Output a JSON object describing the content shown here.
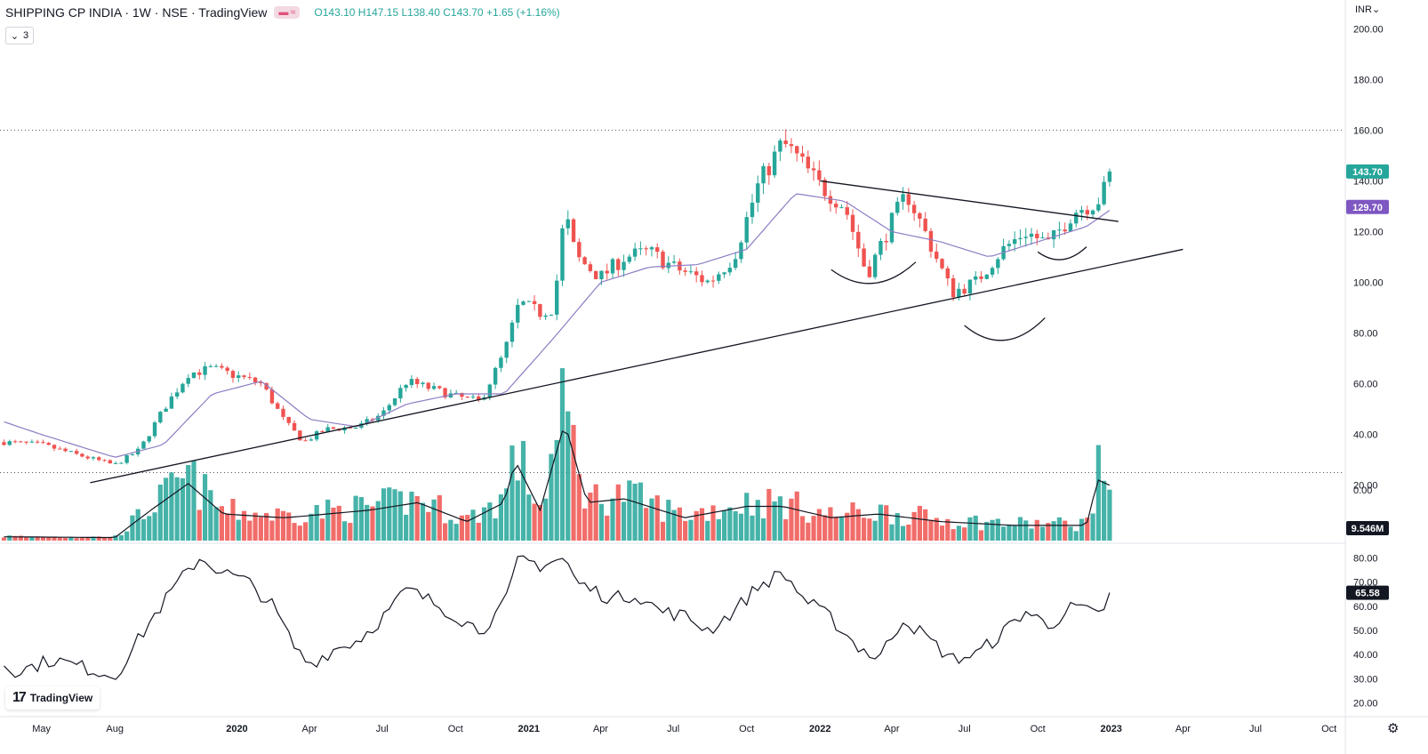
{
  "header": {
    "title": "SHIPPING CP INDIA · 1W · NSE · TradingView",
    "icon_a": "eye-icon",
    "icon_b": "wave-icon",
    "open": "O143.10",
    "high": "H147.15",
    "low": "L138.40",
    "close": "C143.70",
    "change": "+1.65 (+1.16%)",
    "collapse_count": "3"
  },
  "currency": "INR",
  "logo_text": "TradingView",
  "colors": {
    "up": "#26a69a",
    "down": "#ef5350",
    "ma": "#8e7cc3",
    "axis_text": "#131722",
    "price_badge": "#26a69a",
    "ma_badge": "#7e57c2",
    "vol_badge": "#131722"
  },
  "chart_data": [
    {
      "type": "candlestick",
      "panel": "price",
      "interval": "1W",
      "ylim": [
        15,
        205
      ],
      "y_ticks": [
        "200.00",
        "180.00",
        "160.00",
        "140.00",
        "120.00",
        "100.00",
        "80.00",
        "60.00",
        "40.00",
        "20.00",
        "0.00"
      ],
      "x_ticks": [
        "May",
        "Aug",
        "2020",
        "Apr",
        "Jul",
        "Oct",
        "2021",
        "Apr",
        "Jul",
        "Oct",
        "2022",
        "Apr",
        "Jul",
        "Oct",
        "2023",
        "Apr",
        "Jul",
        "Oct"
      ],
      "x_tick_dates": [
        "2019-05-01",
        "2019-08-01",
        "2020-01-01",
        "2020-04-01",
        "2020-07-01",
        "2020-10-01",
        "2021-01-01",
        "2021-04-01",
        "2021-07-01",
        "2021-10-01",
        "2022-01-01",
        "2022-04-01",
        "2022-07-01",
        "2022-10-01",
        "2023-01-01",
        "2023-04-01",
        "2023-07-01",
        "2023-10-01"
      ],
      "price_path": [
        [
          "2019-03-15",
          37
        ],
        [
          "2019-05-01",
          36
        ],
        [
          "2019-06-15",
          32
        ],
        [
          "2019-08-01",
          28
        ],
        [
          "2019-09-01",
          34
        ],
        [
          "2019-10-01",
          50
        ],
        [
          "2019-11-01",
          64
        ],
        [
          "2019-12-01",
          66
        ],
        [
          "2020-01-01",
          63
        ],
        [
          "2020-02-01",
          60
        ],
        [
          "2020-03-01",
          45
        ],
        [
          "2020-03-25",
          37
        ],
        [
          "2020-04-20",
          42
        ],
        [
          "2020-06-01",
          43
        ],
        [
          "2020-07-01",
          48
        ],
        [
          "2020-08-01",
          61
        ],
        [
          "2020-09-01",
          58
        ],
        [
          "2020-10-01",
          55
        ],
        [
          "2020-11-01",
          53
        ],
        [
          "2020-12-01",
          72
        ],
        [
          "2020-12-20",
          92
        ],
        [
          "2021-01-15",
          88
        ],
        [
          "2021-02-01",
          90
        ],
        [
          "2021-02-15",
          128
        ],
        [
          "2021-03-01",
          110
        ],
        [
          "2021-04-01",
          102
        ],
        [
          "2021-05-01",
          110
        ],
        [
          "2021-06-01",
          112
        ],
        [
          "2021-07-01",
          106
        ],
        [
          "2021-08-15",
          100
        ],
        [
          "2021-09-15",
          110
        ],
        [
          "2021-10-15",
          138
        ],
        [
          "2021-11-15",
          155
        ],
        [
          "2021-12-01",
          150
        ],
        [
          "2022-01-01",
          138
        ],
        [
          "2022-02-01",
          130
        ],
        [
          "2022-03-01",
          103
        ],
        [
          "2022-04-01",
          124
        ],
        [
          "2022-04-20",
          135
        ],
        [
          "2022-05-15",
          118
        ],
        [
          "2022-06-15",
          96
        ],
        [
          "2022-07-15",
          100
        ],
        [
          "2022-08-15",
          112
        ],
        [
          "2022-09-15",
          120
        ],
        [
          "2022-10-15",
          115
        ],
        [
          "2022-11-15",
          128
        ],
        [
          "2022-12-15",
          132
        ],
        [
          "2023-01-05",
          143.7
        ]
      ],
      "ma_path": [
        [
          "2019-03-15",
          45
        ],
        [
          "2019-05-01",
          40
        ],
        [
          "2019-08-01",
          31
        ],
        [
          "2019-10-01",
          36
        ],
        [
          "2019-12-01",
          56
        ],
        [
          "2020-02-01",
          61
        ],
        [
          "2020-04-01",
          46
        ],
        [
          "2020-06-01",
          43
        ],
        [
          "2020-08-01",
          52
        ],
        [
          "2020-10-01",
          56
        ],
        [
          "2020-12-01",
          56
        ],
        [
          "2021-02-01",
          78
        ],
        [
          "2021-04-01",
          100
        ],
        [
          "2021-06-01",
          106
        ],
        [
          "2021-08-01",
          107
        ],
        [
          "2021-10-01",
          113
        ],
        [
          "2021-12-01",
          135
        ],
        [
          "2022-02-01",
          132
        ],
        [
          "2022-04-01",
          120
        ],
        [
          "2022-06-01",
          116
        ],
        [
          "2022-08-01",
          110
        ],
        [
          "2022-10-01",
          116
        ],
        [
          "2022-12-01",
          122
        ],
        [
          "2023-01-05",
          129.7
        ]
      ],
      "trendlines": [
        {
          "from": [
            "2019-07-01",
            21
          ],
          "to": [
            "2023-04-01",
            113
          ]
        },
        {
          "from": [
            "2022-01-01",
            140
          ],
          "to": [
            "2023-01-10",
            124
          ]
        }
      ],
      "horizontal_levels": [
        160,
        25
      ],
      "arcs": [
        {
          "from": [
            "2022-01-15",
            105
          ],
          "to": [
            "2022-05-01",
            108
          ],
          "depth": 14
        },
        {
          "from": [
            "2022-07-01",
            83
          ],
          "to": [
            "2022-10-10",
            86
          ],
          "depth": 15
        },
        {
          "from": [
            "2022-10-01",
            112
          ],
          "to": [
            "2022-12-01",
            114
          ],
          "depth": 8
        }
      ],
      "last_price": 143.7,
      "last_price_label": "143.70",
      "ma_value": 129.7,
      "ma_label": "129.70"
    },
    {
      "type": "bar",
      "panel": "volume",
      "series_profile": [
        [
          "2019-03-15",
          0.5
        ],
        [
          "2019-08-01",
          0.4
        ],
        [
          "2019-09-15",
          4.0
        ],
        [
          "2019-11-01",
          7.5
        ],
        [
          "2019-12-15",
          3.5
        ],
        [
          "2020-03-01",
          3.0
        ],
        [
          "2020-06-15",
          4.0
        ],
        [
          "2020-08-15",
          5.0
        ],
        [
          "2020-10-15",
          2.5
        ],
        [
          "2020-12-01",
          5.0
        ],
        [
          "2020-12-15",
          10.5
        ],
        [
          "2021-01-15",
          4.0
        ],
        [
          "2021-02-15",
          15.5
        ],
        [
          "2021-03-15",
          5.0
        ],
        [
          "2021-05-01",
          5.5
        ],
        [
          "2021-07-15",
          3.0
        ],
        [
          "2021-10-01",
          4.5
        ],
        [
          "2021-11-15",
          4.5
        ],
        [
          "2022-01-15",
          3.0
        ],
        [
          "2022-03-15",
          3.5
        ],
        [
          "2022-06-01",
          2.5
        ],
        [
          "2022-09-01",
          2.0
        ],
        [
          "2022-12-01",
          2.0
        ],
        [
          "2022-12-15",
          8.0
        ],
        [
          "2023-01-05",
          7.0
        ]
      ],
      "last_volume_label": "9.546M"
    },
    {
      "type": "line",
      "panel": "rsi",
      "ylim": [
        18,
        82
      ],
      "y_ticks": [
        "80.00",
        "70.00",
        "60.00",
        "50.00",
        "40.00",
        "30.00",
        "20.00"
      ],
      "values_path": [
        [
          "2019-03-15",
          36
        ],
        [
          "2019-04-01",
          33
        ],
        [
          "2019-05-15",
          38
        ],
        [
          "2019-07-01",
          34
        ],
        [
          "2019-08-01",
          31
        ],
        [
          "2019-09-15",
          54
        ],
        [
          "2019-10-15",
          68
        ],
        [
          "2019-11-15",
          80
        ],
        [
          "2019-12-15",
          74
        ],
        [
          "2020-01-15",
          70
        ],
        [
          "2020-02-15",
          60
        ],
        [
          "2020-03-15",
          42
        ],
        [
          "2020-04-01",
          36
        ],
        [
          "2020-05-01",
          42
        ],
        [
          "2020-06-01",
          46
        ],
        [
          "2020-07-01",
          55
        ],
        [
          "2020-08-01",
          67
        ],
        [
          "2020-09-01",
          62
        ],
        [
          "2020-10-01",
          56
        ],
        [
          "2020-11-01",
          50
        ],
        [
          "2020-12-01",
          60
        ],
        [
          "2020-12-20",
          80
        ],
        [
          "2021-01-15",
          77
        ],
        [
          "2021-02-15",
          80
        ],
        [
          "2021-03-01",
          70
        ],
        [
          "2021-04-15",
          63
        ],
        [
          "2021-05-15",
          65
        ],
        [
          "2021-06-15",
          58
        ],
        [
          "2021-07-15",
          56
        ],
        [
          "2021-08-15",
          50
        ],
        [
          "2021-09-15",
          58
        ],
        [
          "2021-10-15",
          68
        ],
        [
          "2021-11-15",
          74
        ],
        [
          "2021-12-15",
          62
        ],
        [
          "2022-01-15",
          55
        ],
        [
          "2022-02-15",
          44
        ],
        [
          "2022-03-15",
          38
        ],
        [
          "2022-04-15",
          55
        ],
        [
          "2022-05-15",
          47
        ],
        [
          "2022-06-15",
          38
        ],
        [
          "2022-07-15",
          40
        ],
        [
          "2022-08-15",
          48
        ],
        [
          "2022-09-15",
          58
        ],
        [
          "2022-10-15",
          52
        ],
        [
          "2022-11-15",
          60
        ],
        [
          "2022-12-15",
          56
        ],
        [
          "2023-01-05",
          65.58
        ]
      ],
      "last_value_label": "65.58"
    }
  ]
}
